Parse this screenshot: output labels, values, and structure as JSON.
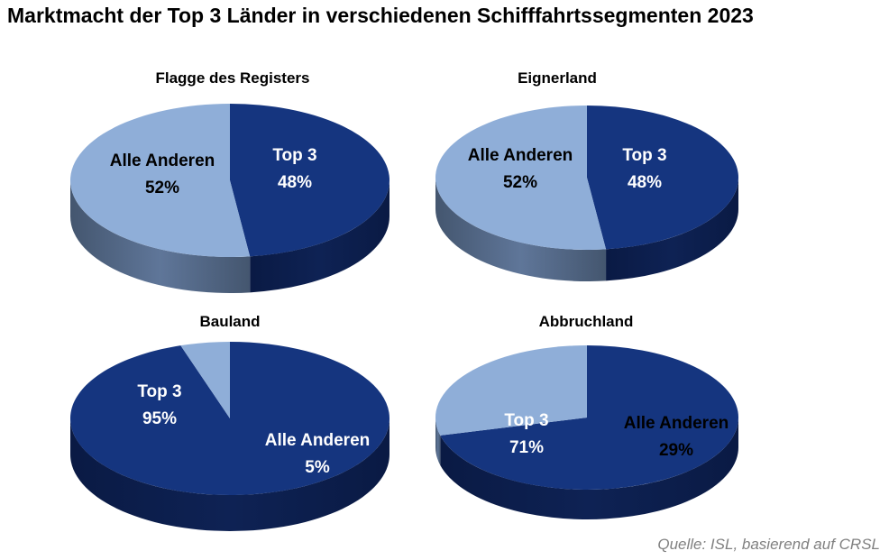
{
  "title": "Marktmacht der Top 3 Länder in verschiedenen Schifffahrtssegmenten 2023",
  "source": "Quelle: ISL, basierend auf CRSL",
  "colors": {
    "top3": "#15357F",
    "top3_side": "#0E2254",
    "others": "#8FAED8",
    "others_side": "#5F7699",
    "label_dark": "#000000",
    "label_light": "#FFFFFF"
  },
  "chart_data": [
    {
      "type": "pie",
      "title": "Flagge des Registers",
      "slices": [
        {
          "label": "Top 3",
          "value": 48,
          "value_label": "48%"
        },
        {
          "label": "Alle Anderen",
          "value": 52,
          "value_label": "52%"
        }
      ]
    },
    {
      "type": "pie",
      "title": "Eignerland",
      "slices": [
        {
          "label": "Top 3",
          "value": 48,
          "value_label": "48%"
        },
        {
          "label": "Alle Anderen",
          "value": 52,
          "value_label": "52%"
        }
      ]
    },
    {
      "type": "pie",
      "title": "Bauland",
      "slices": [
        {
          "label": "Top 3",
          "value": 95,
          "value_label": "95%"
        },
        {
          "label": "Alle Anderen",
          "value": 5,
          "value_label": "5%"
        }
      ]
    },
    {
      "type": "pie",
      "title": "Abbruchland",
      "slices": [
        {
          "label": "Top 3",
          "value": 71,
          "value_label": "71%"
        },
        {
          "label": "Alle Anderen",
          "value": 29,
          "value_label": "29%"
        }
      ]
    }
  ]
}
